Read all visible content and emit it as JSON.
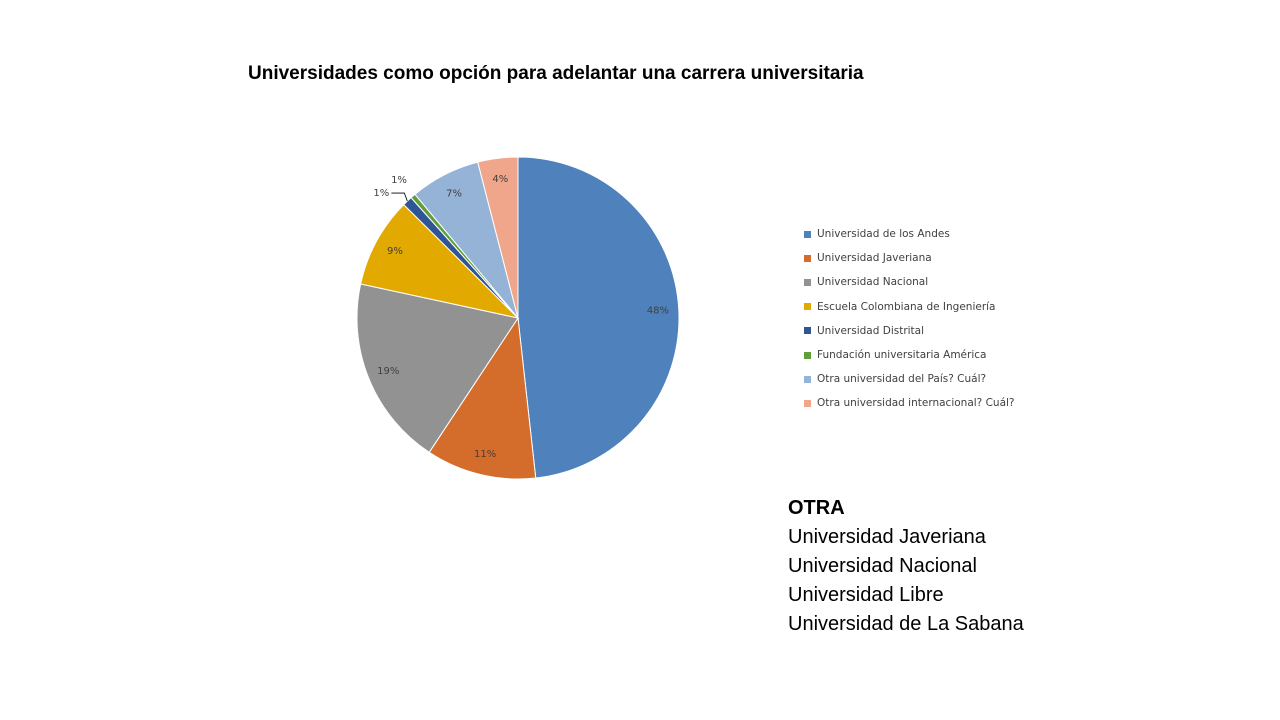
{
  "chart_data": {
    "type": "pie",
    "title": "Universidades como opción para adelantar una carrera universitaria",
    "categories": [
      "Universidad de los Andes",
      "Universidad Javeriana",
      "Universidad Nacional",
      "Escuela Colombiana de Ingeniería",
      "Universidad Distrital",
      "Fundación universitaria América",
      "Otra universidad del País? Cuál?",
      "Otra universidad internacional? Cuál?"
    ],
    "values": [
      48,
      11,
      19,
      9,
      1,
      0.5,
      7,
      4
    ],
    "data_labels": [
      "48%",
      "11%",
      "19%",
      "9%",
      "1%",
      "1%",
      "7%",
      "4%"
    ],
    "colors": [
      "#4F81BD",
      "#D46D2B",
      "#929292",
      "#E2A900",
      "#2F5597",
      "#5F9E3A",
      "#95B3D7",
      "#EFA68A"
    ],
    "legend_position": "right",
    "start_angle_deg": 0,
    "direction": "clockwise"
  },
  "others": {
    "heading": "OTRA",
    "items": [
      "Universidad Javeriana",
      "Universidad Nacional",
      "Universidad Libre",
      "Universidad de La Sabana"
    ]
  }
}
